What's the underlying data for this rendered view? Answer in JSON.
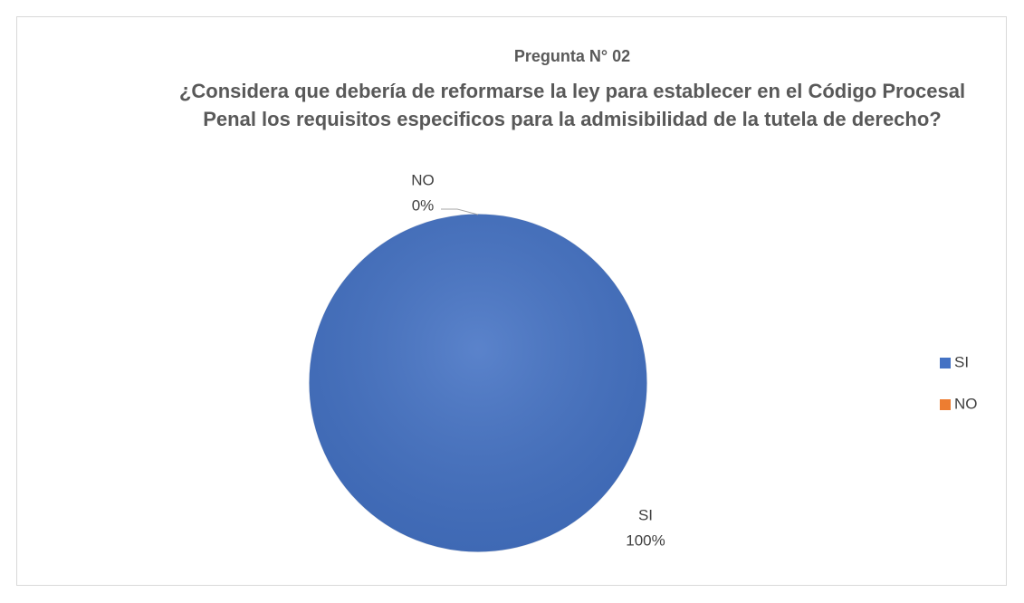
{
  "chart_data": {
    "type": "pie",
    "title": "Pregunta N° 02",
    "subtitle": "¿Considera que debería de reformarse la ley para establecer en el Código Procesal Penal los requisitos especificos para la admisibilidad de la tutela de derecho?",
    "categories": [
      "SI",
      "NO"
    ],
    "values": [
      100,
      0
    ],
    "value_labels": [
      "100%",
      "0%"
    ],
    "colors": [
      "#4472c4",
      "#ed7d31"
    ],
    "legend": "right"
  }
}
